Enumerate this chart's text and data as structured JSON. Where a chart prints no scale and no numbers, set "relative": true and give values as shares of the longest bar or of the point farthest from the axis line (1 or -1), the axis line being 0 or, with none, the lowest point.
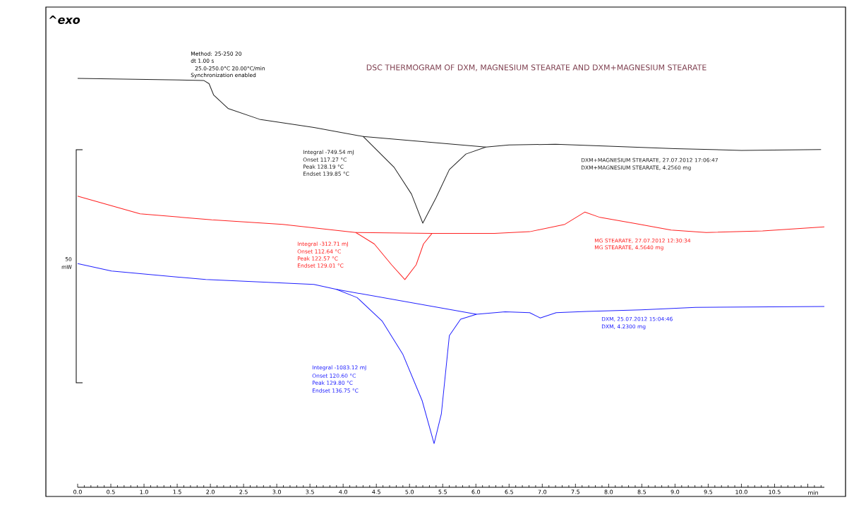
{
  "chart_data": {
    "type": "line",
    "relative": true,
    "title": "DSC THERMOGRAM OF DXM, MAGNESIUM STEARATE AND DXM+MAGNESIUM STEARATE",
    "xlabel": "min",
    "xlim": [
      0,
      11.25
    ],
    "xticks": [
      {
        "value": 0,
        "label": "0.0"
      },
      0.5,
      {
        "value": 1,
        "label": "1.0"
      },
      1.5,
      {
        "value": 2,
        "label": "2.0"
      },
      2.5,
      {
        "value": 3,
        "label": "3.0"
      },
      3.5,
      {
        "value": 4,
        "label": "4.0"
      },
      4.5,
      {
        "value": 5,
        "label": "5.0"
      },
      5.5,
      {
        "value": 6,
        "label": "6.0"
      },
      6.5,
      {
        "value": 7,
        "label": "7.0"
      },
      7.5,
      {
        "value": 8,
        "label": "8.0"
      },
      8.5,
      {
        "value": 9,
        "label": "9.0"
      },
      9.5,
      {
        "value": 10,
        "label": "10.0"
      },
      10.5,
      {
        "value": 11,
        "label": null
      }
    ],
    "series": [
      {
        "name": "DXM+MAGNESIUM STEARATE, 27.07.2012 17:06:47",
        "color": "#222222",
        "x": [
          0,
          1.9,
          1.98,
          2.05,
          2.27,
          2.74,
          3.56,
          4.3,
          4.77,
          5.03,
          5.2,
          5.4,
          5.6,
          5.85,
          6.15,
          6.5,
          7.2,
          8.0,
          9.0,
          10.0,
          11.2
        ],
        "values": [
          1.0,
          0.995,
          0.987,
          0.959,
          0.926,
          0.9,
          0.88,
          0.858,
          0.782,
          0.717,
          0.646,
          0.708,
          0.777,
          0.815,
          0.832,
          0.837,
          0.839,
          0.834,
          0.828,
          0.824,
          0.826
        ]
      },
      {
        "color": "#222222",
        "x": [
          4.3,
          6.15
        ],
        "values": [
          0.858,
          0.832
        ]
      },
      {
        "name": "MG STEARATE, 27.07.2012 12:30:34",
        "color": "#ff2020",
        "x": [
          0,
          0.94,
          2.02,
          3.09,
          4.19,
          4.47,
          4.73,
          4.93,
          5.1,
          5.21,
          5.34,
          6.28,
          6.81,
          7.34,
          7.64,
          7.87,
          8.4,
          8.94,
          9.47,
          10.32,
          11.25
        ],
        "values": [
          0.712,
          0.669,
          0.654,
          0.643,
          0.623,
          0.595,
          0.544,
          0.508,
          0.544,
          0.595,
          0.621,
          0.621,
          0.625,
          0.643,
          0.673,
          0.66,
          0.645,
          0.629,
          0.623,
          0.627,
          0.637
        ]
      },
      {
        "color": "#ff2020",
        "x": [
          4.19,
          5.34
        ],
        "values": [
          0.623,
          0.621
        ]
      },
      {
        "name": "DXM, 25.07.2012 15:04:46",
        "color": "#2020ff",
        "x": [
          0,
          0.51,
          1.93,
          3.56,
          3.9,
          4.21,
          4.59,
          4.9,
          5.19,
          5.37,
          5.48,
          5.6,
          5.77,
          6.01,
          6.44,
          6.81,
          6.97,
          7.21,
          7.67,
          8.49,
          9.31,
          11.25
        ],
        "values": [
          0.547,
          0.529,
          0.508,
          0.496,
          0.484,
          0.464,
          0.406,
          0.325,
          0.212,
          0.107,
          0.18,
          0.371,
          0.411,
          0.423,
          0.429,
          0.427,
          0.414,
          0.427,
          0.43,
          0.434,
          0.44,
          0.442
        ]
      },
      {
        "color": "#2020ff",
        "x": [
          3.9,
          6.01
        ],
        "values": [
          0.484,
          0.423
        ]
      }
    ],
    "annotations": [
      "^exo",
      "Method: 25-250 20",
      "dt 1.00 s",
      "25.0-250.0°C 20.00°C/min",
      "Synchronization enabled",
      "Integral   -749.54 mJ",
      "Onset   117.27 °C",
      "Peak   128.19 °C",
      "Endset   139.85 °C",
      "DXM+MAGNESIUM STEARATE, 4.2560 mg",
      "Integral   -312.71 mJ",
      "Onset   112.64 °C",
      "Peak   122.57 °C",
      "Endset   129.01 °C",
      "MG STEARATE, 4.5640 mg",
      "Integral   -1083.12 mJ",
      "Onset   120.60 °C",
      "Peak   129.80 °C",
      "Endset   136.75 °C",
      "DXM, 4.2300 mg",
      "50",
      "mW"
    ]
  }
}
